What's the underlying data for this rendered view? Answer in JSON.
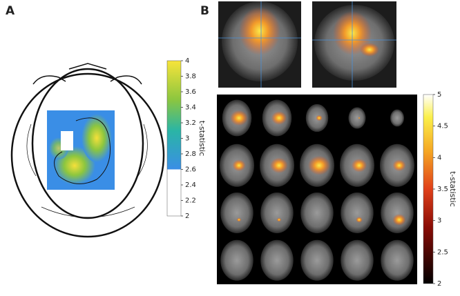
{
  "panel_a": {
    "label": "A",
    "colorbar": {
      "title": "t-statistic",
      "range": [
        2,
        4
      ],
      "ticks": [
        2,
        2.2,
        2.4,
        2.6,
        2.8,
        3,
        3.2,
        3.4,
        3.6,
        3.8,
        4
      ]
    }
  },
  "panel_b": {
    "label": "B",
    "colorbar": {
      "title": "t-statistic",
      "range": [
        2,
        5
      ],
      "ticks": [
        2,
        2.5,
        3,
        3.5,
        4,
        4.5,
        5
      ]
    }
  }
}
